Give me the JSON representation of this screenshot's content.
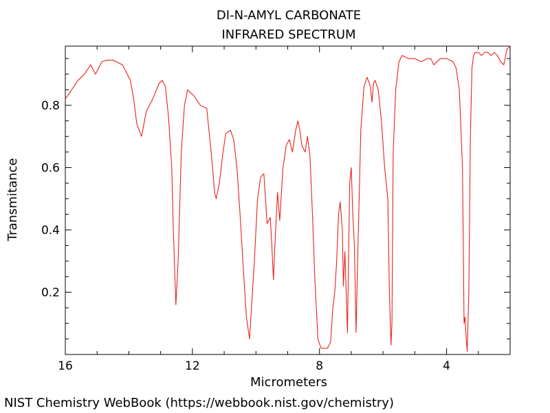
{
  "chart_data": {
    "type": "line",
    "title": "DI-N-AMYL CARBONATE",
    "subtitle": "INFRARED SPECTRUM",
    "xlabel": "Micrometers",
    "ylabel": "Transmitance",
    "xlim": [
      16,
      2
    ],
    "ylim": [
      0.0,
      0.99
    ],
    "x_reversed": true,
    "grid": false,
    "x_ticks": [
      {
        "value": 16,
        "label": "16"
      },
      {
        "value": 12,
        "label": "12"
      },
      {
        "value": 8,
        "label": "8"
      },
      {
        "value": 4,
        "label": "4"
      }
    ],
    "y_ticks": [
      {
        "value": 0.8,
        "label": "0.8"
      },
      {
        "value": 0.6,
        "label": "0.6"
      },
      {
        "value": 0.4,
        "label": "0.4"
      },
      {
        "value": 0.2,
        "label": "0.2"
      }
    ],
    "series": [
      {
        "color": "#e8201a",
        "x": [
          16.0,
          15.8,
          15.6,
          15.4,
          15.2,
          15.05,
          14.95,
          14.85,
          14.7,
          14.5,
          14.2,
          13.95,
          13.85,
          13.75,
          13.6,
          13.45,
          13.25,
          13.05,
          12.95,
          12.85,
          12.75,
          12.65,
          12.6,
          12.52,
          12.45,
          12.35,
          12.25,
          12.15,
          11.95,
          11.75,
          11.55,
          11.4,
          11.3,
          11.25,
          11.15,
          11.05,
          10.95,
          10.8,
          10.7,
          10.6,
          10.5,
          10.4,
          10.3,
          10.2,
          10.05,
          9.95,
          9.85,
          9.75,
          9.65,
          9.55,
          9.5,
          9.45,
          9.38,
          9.32,
          9.25,
          9.15,
          9.05,
          8.95,
          8.85,
          8.75,
          8.68,
          8.62,
          8.55,
          8.45,
          8.38,
          8.3,
          8.22,
          8.15,
          8.05,
          7.95,
          7.85,
          7.75,
          7.65,
          7.58,
          7.52,
          7.46,
          7.4,
          7.35,
          7.28,
          7.25,
          7.2,
          7.12,
          7.05,
          7.0,
          6.95,
          6.9,
          6.85,
          6.8,
          6.7,
          6.6,
          6.5,
          6.4,
          6.35,
          6.3,
          6.25,
          6.15,
          6.05,
          5.95,
          5.85,
          5.8,
          5.75,
          5.72,
          5.68,
          5.6,
          5.5,
          5.4,
          5.2,
          5.0,
          4.8,
          4.6,
          4.5,
          4.4,
          4.2,
          4.0,
          3.8,
          3.7,
          3.6,
          3.5,
          3.45,
          3.42,
          3.38,
          3.35,
          3.3,
          3.25,
          3.2,
          3.15,
          3.1,
          3.0,
          2.9,
          2.8,
          2.7,
          2.6,
          2.5,
          2.4,
          2.3,
          2.2,
          2.1,
          2.0
        ],
        "y": [
          0.82,
          0.85,
          0.88,
          0.9,
          0.93,
          0.9,
          0.92,
          0.94,
          0.945,
          0.945,
          0.93,
          0.88,
          0.82,
          0.74,
          0.7,
          0.78,
          0.82,
          0.87,
          0.88,
          0.86,
          0.76,
          0.6,
          0.4,
          0.16,
          0.3,
          0.65,
          0.8,
          0.85,
          0.83,
          0.8,
          0.79,
          0.64,
          0.52,
          0.5,
          0.55,
          0.64,
          0.71,
          0.72,
          0.69,
          0.6,
          0.45,
          0.28,
          0.12,
          0.05,
          0.3,
          0.5,
          0.57,
          0.58,
          0.42,
          0.44,
          0.35,
          0.24,
          0.4,
          0.52,
          0.43,
          0.6,
          0.67,
          0.69,
          0.65,
          0.72,
          0.75,
          0.72,
          0.67,
          0.65,
          0.7,
          0.64,
          0.45,
          0.25,
          0.05,
          0.02,
          0.02,
          0.02,
          0.04,
          0.15,
          0.2,
          0.3,
          0.45,
          0.49,
          0.4,
          0.22,
          0.33,
          0.07,
          0.55,
          0.6,
          0.45,
          0.35,
          0.07,
          0.3,
          0.72,
          0.86,
          0.89,
          0.86,
          0.81,
          0.87,
          0.88,
          0.85,
          0.75,
          0.6,
          0.5,
          0.2,
          0.03,
          0.1,
          0.65,
          0.85,
          0.94,
          0.96,
          0.95,
          0.95,
          0.94,
          0.95,
          0.95,
          0.93,
          0.95,
          0.95,
          0.94,
          0.92,
          0.85,
          0.6,
          0.1,
          0.12,
          0.05,
          0.01,
          0.2,
          0.7,
          0.92,
          0.96,
          0.97,
          0.97,
          0.96,
          0.97,
          0.97,
          0.96,
          0.97,
          0.96,
          0.94,
          0.93,
          0.98,
          0.99
        ]
      }
    ]
  },
  "footer": {
    "credit": "NIST Chemistry WebBook (https://webbook.nist.gov/chemistry)"
  }
}
